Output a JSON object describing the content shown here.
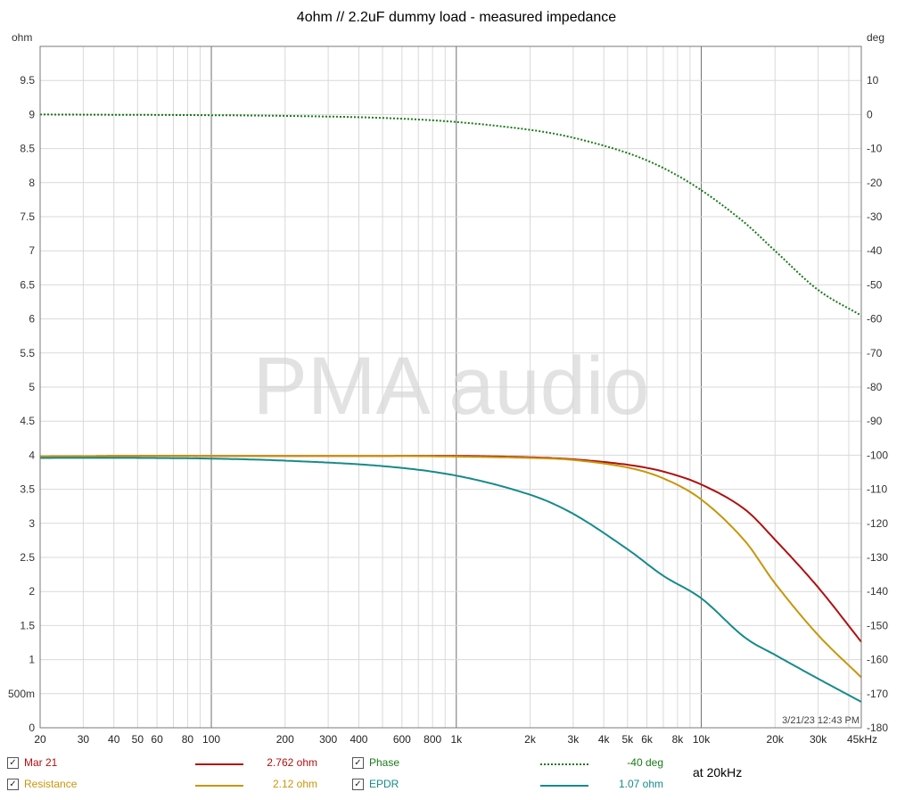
{
  "chart_data": {
    "type": "line",
    "title": "4ohm // 2.2uF dummy load - measured impedance",
    "watermark": "PMA audio",
    "timestamp": "3/21/23 12:43 PM",
    "x_scale": "log",
    "xlim": [
      20,
      45000
    ],
    "x_ticks": [
      20,
      30,
      40,
      50,
      60,
      80,
      100,
      200,
      300,
      400,
      600,
      800,
      1000,
      2000,
      3000,
      4000,
      5000,
      6000,
      8000,
      10000,
      20000,
      30000,
      45000
    ],
    "x_tick_labels": [
      "20",
      "30",
      "40",
      "50",
      "60",
      "80",
      "100",
      "200",
      "300",
      "400",
      "600",
      "800",
      "1k",
      "2k",
      "3k",
      "4k",
      "5k",
      "6k",
      "8k",
      "10k",
      "20k",
      "30k",
      "45kHz"
    ],
    "y_left": {
      "unit": "ohm",
      "ylim": [
        0,
        10
      ],
      "ticks": [
        0,
        0.5,
        1,
        1.5,
        2,
        2.5,
        3,
        3.5,
        4,
        4.5,
        5,
        5.5,
        6,
        6.5,
        7,
        7.5,
        8,
        8.5,
        9,
        9.5
      ],
      "tick_labels": [
        "0",
        "500m",
        "1",
        "1.5",
        "2",
        "2.5",
        "3",
        "3.5",
        "4",
        "4.5",
        "5",
        "5.5",
        "6",
        "6.5",
        "7",
        "7.5",
        "8",
        "8.5",
        "9",
        "9.5"
      ]
    },
    "y_right": {
      "unit": "deg",
      "ylim": [
        -180,
        20
      ],
      "ticks": [
        10,
        0,
        -10,
        -20,
        -30,
        -40,
        -50,
        -60,
        -70,
        -80,
        -90,
        -100,
        -110,
        -120,
        -130,
        -140,
        -150,
        -160,
        -170,
        -180
      ],
      "tick_labels": [
        "10",
        "0",
        "-10",
        "-20",
        "-30",
        "-40",
        "-50",
        "-60",
        "-70",
        "-80",
        "-90",
        "-100",
        "-110",
        "-120",
        "-130",
        "-140",
        "-150",
        "-160",
        "-170",
        "-180"
      ]
    },
    "grid": true,
    "x": [
      20,
      50,
      100,
      200,
      500,
      1000,
      2000,
      3000,
      5000,
      7000,
      10000,
      15000,
      20000,
      30000,
      45000
    ],
    "series": [
      {
        "name": "Mar 21",
        "axis": "left",
        "color": "#b01010",
        "style": "solid",
        "values": [
          3.98,
          3.99,
          3.99,
          3.99,
          3.99,
          3.99,
          3.97,
          3.94,
          3.86,
          3.76,
          3.57,
          3.21,
          2.76,
          2.06,
          1.26
        ]
      },
      {
        "name": "Resistance",
        "axis": "left",
        "color": "#c8960a",
        "style": "solid",
        "values": [
          3.98,
          3.99,
          3.99,
          3.99,
          3.99,
          3.98,
          3.96,
          3.93,
          3.82,
          3.66,
          3.35,
          2.75,
          2.12,
          1.36,
          0.74
        ]
      },
      {
        "name": "Phase",
        "axis": "right",
        "color": "#1a7a1a",
        "style": "dotted",
        "values": [
          0,
          -0.1,
          -0.2,
          -0.4,
          -1.0,
          -2.2,
          -4.5,
          -6.8,
          -11.3,
          -15.7,
          -22.2,
          -31.7,
          -40,
          -51.5,
          -59
        ]
      },
      {
        "name": "EPDR",
        "axis": "left",
        "color": "#178a8a",
        "style": "solid",
        "values": [
          3.96,
          3.96,
          3.95,
          3.92,
          3.84,
          3.7,
          3.42,
          3.14,
          2.62,
          2.23,
          1.9,
          1.33,
          1.07,
          0.72,
          0.38
        ]
      }
    ]
  },
  "legend": {
    "rows": [
      {
        "left_label": "Mar 21",
        "left_value": "2.762 ohm",
        "right_label": "Phase",
        "right_value": "-40 deg"
      },
      {
        "left_label": "Resistance",
        "left_value": "2.12 ohm",
        "right_label": "EPDR",
        "right_value": "1.07 ohm"
      }
    ],
    "note": "at 20kHz",
    "checkmark": "✓"
  }
}
